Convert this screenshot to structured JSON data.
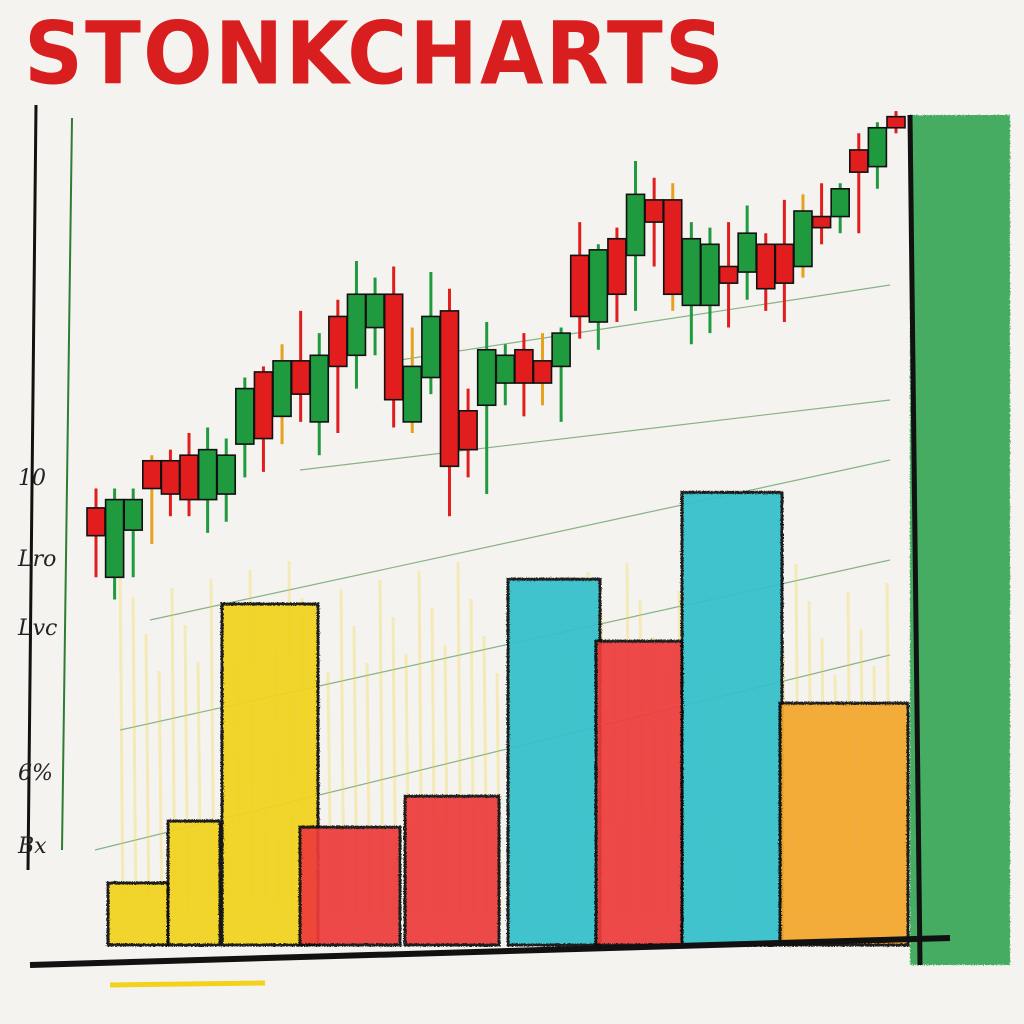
{
  "title": "STONKCHARTS",
  "colors": {
    "up": "#1f9a3e",
    "down": "#e11d1d",
    "wick_alt": "#e6a21e",
    "axis": "#111111",
    "grid": "#2e7d32",
    "yellow": "#f2d31a",
    "red": "#ee3b3b",
    "cyan": "#33c0cc",
    "orange": "#f3a72a",
    "green": "#2ea34f"
  },
  "chart_data": [
    {
      "type": "candlestick",
      "y_tick_labels": [
        "10",
        "Lro",
        "Lvc",
        "6%",
        "Bx"
      ],
      "series": [
        {
          "o": 26.5,
          "c": 21.5,
          "h": 30,
          "l": 14,
          "up": false
        },
        {
          "o": 14,
          "c": 28,
          "h": 30,
          "l": 10,
          "up": true
        },
        {
          "o": 22.5,
          "c": 28,
          "h": 30,
          "l": 14,
          "up": true
        },
        {
          "o": 30,
          "c": 35,
          "h": 36,
          "l": 20,
          "up": false
        },
        {
          "o": 29,
          "c": 35,
          "h": 37,
          "l": 25,
          "up": false
        },
        {
          "o": 36,
          "c": 28,
          "h": 40,
          "l": 25,
          "up": false
        },
        {
          "o": 28,
          "c": 37,
          "h": 41,
          "l": 22,
          "up": true
        },
        {
          "o": 29,
          "c": 36,
          "h": 39,
          "l": 24,
          "up": true
        },
        {
          "o": 38,
          "c": 48,
          "h": 50,
          "l": 32,
          "up": true
        },
        {
          "o": 39,
          "c": 51,
          "h": 52,
          "l": 33,
          "up": false
        },
        {
          "o": 43,
          "c": 53,
          "h": 56,
          "l": 38,
          "up": true
        },
        {
          "o": 53,
          "c": 47,
          "h": 62,
          "l": 42,
          "up": false
        },
        {
          "o": 42,
          "c": 54,
          "h": 58,
          "l": 36,
          "up": true
        },
        {
          "o": 61,
          "c": 52,
          "h": 64,
          "l": 40,
          "up": false
        },
        {
          "o": 54,
          "c": 65,
          "h": 71,
          "l": 48,
          "up": true
        },
        {
          "o": 65,
          "c": 59,
          "h": 68,
          "l": 54,
          "up": true
        },
        {
          "o": 65,
          "c": 46,
          "h": 70,
          "l": 41,
          "up": false
        },
        {
          "o": 42,
          "c": 52,
          "h": 59,
          "l": 40,
          "up": true
        },
        {
          "o": 50,
          "c": 61,
          "h": 69,
          "l": 47,
          "up": true
        },
        {
          "o": 62,
          "c": 34,
          "h": 66,
          "l": 25,
          "up": false
        },
        {
          "o": 37,
          "c": 44,
          "h": 48,
          "l": 32,
          "up": false
        },
        {
          "o": 45,
          "c": 55,
          "h": 60,
          "l": 29,
          "up": true
        },
        {
          "o": 49,
          "c": 54,
          "h": 56,
          "l": 45,
          "up": true
        },
        {
          "o": 55,
          "c": 49,
          "h": 58,
          "l": 43,
          "up": false
        },
        {
          "o": 53,
          "c": 49,
          "h": 58,
          "l": 45,
          "up": false
        },
        {
          "o": 52,
          "c": 58,
          "h": 59,
          "l": 42,
          "up": true
        },
        {
          "o": 72,
          "c": 61,
          "h": 78,
          "l": 57,
          "up": false
        },
        {
          "o": 60,
          "c": 73,
          "h": 74,
          "l": 55,
          "up": true
        },
        {
          "o": 75,
          "c": 65,
          "h": 77,
          "l": 60,
          "up": false
        },
        {
          "o": 72,
          "c": 83,
          "h": 89,
          "l": 62,
          "up": true
        },
        {
          "o": 82,
          "c": 78,
          "h": 86,
          "l": 70,
          "up": false
        },
        {
          "o": 65,
          "c": 82,
          "h": 85,
          "l": 62,
          "up": false
        },
        {
          "o": 63,
          "c": 75,
          "h": 78,
          "l": 56,
          "up": true
        },
        {
          "o": 63,
          "c": 74,
          "h": 77,
          "l": 58,
          "up": true
        },
        {
          "o": 67,
          "c": 70,
          "h": 78,
          "l": 59,
          "up": false
        },
        {
          "o": 69,
          "c": 76,
          "h": 81,
          "l": 64,
          "up": true
        },
        {
          "o": 66,
          "c": 74,
          "h": 76,
          "l": 62,
          "up": false
        },
        {
          "o": 67,
          "c": 74,
          "h": 82,
          "l": 60,
          "up": false
        },
        {
          "o": 70,
          "c": 80,
          "h": 83,
          "l": 68,
          "up": true
        },
        {
          "o": 79,
          "c": 77,
          "h": 85,
          "l": 74,
          "up": false
        },
        {
          "o": 79,
          "c": 84,
          "h": 85,
          "l": 76,
          "up": true
        },
        {
          "o": 87,
          "c": 91,
          "h": 94,
          "l": 76,
          "up": false
        },
        {
          "o": 88,
          "c": 95,
          "h": 96,
          "l": 84,
          "up": true
        },
        {
          "o": 95,
          "c": 97,
          "h": 98,
          "l": 94,
          "up": false
        }
      ],
      "ylim": [
        0,
        100
      ]
    },
    {
      "type": "bar",
      "values": [
        10,
        20,
        55,
        19,
        24,
        59,
        49,
        73,
        39
      ],
      "colors": [
        "yellow",
        "yellow",
        "yellow",
        "red",
        "red",
        "cyan",
        "red",
        "cyan",
        "orange"
      ],
      "ylim": [
        0,
        100
      ]
    },
    {
      "type": "bar",
      "values": [
        100
      ],
      "colors": [
        "green"
      ],
      "ylim": [
        0,
        100
      ]
    }
  ]
}
